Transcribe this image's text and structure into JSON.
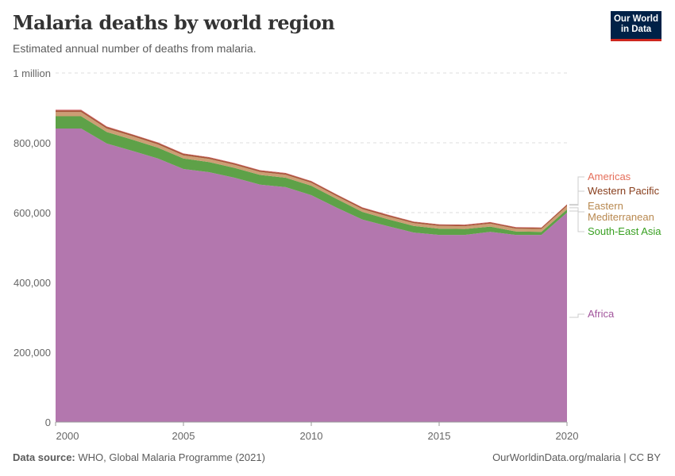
{
  "header": {
    "title": "Malaria deaths by world region",
    "subtitle": "Estimated annual number of deaths from malaria.",
    "logo_line1": "Our World",
    "logo_line2": "in Data"
  },
  "footer": {
    "source_label": "Data source:",
    "source": "WHO, Global Malaria Programme (2021)",
    "right": "OurWorldinData.org/malaria | CC BY"
  },
  "chart_data": {
    "type": "area",
    "stacked": true,
    "title": "Malaria deaths by world region",
    "xlim": [
      2000,
      2020
    ],
    "ylim": [
      0,
      1000000
    ],
    "grid": "horizontal-dashed",
    "legend": "right",
    "y_ticks": [
      {
        "v": 0,
        "label": "0"
      },
      {
        "v": 200000,
        "label": "200,000"
      },
      {
        "v": 400000,
        "label": "400,000"
      },
      {
        "v": 600000,
        "label": "600,000"
      },
      {
        "v": 800000,
        "label": "800,000"
      },
      {
        "v": 1000000,
        "label": "1 million"
      }
    ],
    "x_ticks": [
      {
        "v": 2000,
        "label": "2000"
      },
      {
        "v": 2005,
        "label": "2005"
      },
      {
        "v": 2010,
        "label": "2010"
      },
      {
        "v": 2015,
        "label": "2015"
      },
      {
        "v": 2020,
        "label": "2020"
      }
    ],
    "x": [
      2000,
      2001,
      2002,
      2003,
      2004,
      2005,
      2006,
      2007,
      2008,
      2009,
      2010,
      2011,
      2012,
      2013,
      2014,
      2015,
      2016,
      2017,
      2018,
      2019,
      2020
    ],
    "series": [
      {
        "name": "Africa",
        "color": "#b377ae",
        "values": [
          841000,
          841000,
          798000,
          777000,
          755000,
          725000,
          716000,
          700000,
          680000,
          673000,
          650000,
          614000,
          580000,
          561000,
          543000,
          536000,
          536000,
          545000,
          536000,
          536000,
          600000
        ]
      },
      {
        "name": "South-East Asia",
        "color": "#5ea148",
        "values": [
          35000,
          35000,
          33000,
          32000,
          31000,
          30000,
          29000,
          28000,
          28000,
          27000,
          27000,
          25000,
          22000,
          20000,
          19000,
          18000,
          17000,
          15000,
          10000,
          9000,
          9000
        ]
      },
      {
        "name": "Eastern Mediterranean",
        "color": "#cc9e74",
        "values": [
          12000,
          12000,
          10000,
          10000,
          9500,
          9000,
          9000,
          9000,
          8500,
          8500,
          8500,
          8000,
          8000,
          8000,
          8000,
          8000,
          8000,
          8500,
          8000,
          8000,
          10000
        ]
      },
      {
        "name": "Western Pacific",
        "color": "#a7573a",
        "values": [
          5000,
          5000,
          4500,
          4500,
          4500,
          4500,
          4000,
          4000,
          4000,
          4000,
          4000,
          4000,
          4000,
          4000,
          3500,
          3500,
          3500,
          3500,
          3500,
          3500,
          4000
        ]
      },
      {
        "name": "Americas",
        "color": "#d1555e",
        "values": [
          1500,
          1500,
          1500,
          1000,
          1000,
          1000,
          1000,
          1000,
          1000,
          1000,
          1000,
          1000,
          1000,
          1000,
          1000,
          1000,
          1000,
          1000,
          1000,
          1000,
          1000
        ]
      }
    ]
  }
}
